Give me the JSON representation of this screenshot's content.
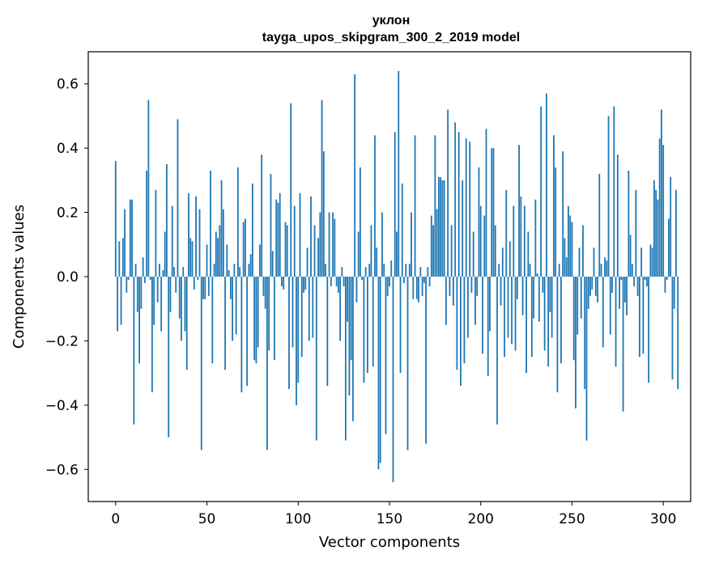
{
  "chart_data": {
    "type": "bar",
    "title": "уклон",
    "subtitle": "tayga_upos_skipgram_300_2_2019 model",
    "xlabel": "Vector components",
    "ylabel": "Components values",
    "xlim": [
      -15,
      315
    ],
    "ylim": [
      -0.7,
      0.7
    ],
    "xticks": [
      0,
      50,
      100,
      150,
      200,
      250,
      300
    ],
    "xtick_labels": [
      "0",
      "50",
      "100",
      "150",
      "200",
      "250",
      "300"
    ],
    "yticks": [
      -0.6,
      -0.4,
      -0.2,
      0.0,
      0.2,
      0.4,
      0.6
    ],
    "ytick_labels": [
      "−0.6",
      "−0.4",
      "−0.2",
      "0.0",
      "0.2",
      "0.4",
      "0.6"
    ],
    "grid": false,
    "bar_color": "#1f77b4",
    "values": [
      0.36,
      -0.17,
      0.11,
      -0.15,
      0.12,
      0.21,
      -0.05,
      -0.01,
      0.24,
      0.24,
      -0.46,
      0.04,
      -0.11,
      -0.27,
      -0.1,
      0.06,
      -0.02,
      0.33,
      0.55,
      -0.01,
      -0.36,
      -0.15,
      0.27,
      -0.08,
      0.04,
      -0.17,
      0.02,
      0.14,
      0.35,
      -0.5,
      -0.11,
      0.22,
      0.03,
      -0.05,
      0.49,
      -0.13,
      -0.2,
      0.03,
      -0.17,
      -0.29,
      0.26,
      0.12,
      0.11,
      -0.04,
      0.25,
      -0.01,
      0.21,
      -0.54,
      -0.07,
      -0.07,
      0.1,
      -0.06,
      0.33,
      -0.27,
      0.04,
      0.14,
      0.12,
      0.16,
      0.3,
      0.21,
      -0.29,
      0.1,
      0.02,
      -0.07,
      -0.2,
      0.04,
      -0.18,
      0.34,
      0.03,
      -0.36,
      0.17,
      0.18,
      -0.34,
      0.04,
      0.07,
      0.29,
      -0.26,
      -0.27,
      -0.22,
      0.1,
      0.38,
      -0.06,
      -0.1,
      -0.54,
      -0.23,
      0.32,
      0.08,
      -0.26,
      0.24,
      0.23,
      0.26,
      -0.03,
      -0.04,
      0.17,
      0.16,
      -0.35,
      0.54,
      -0.22,
      0.22,
      -0.4,
      -0.33,
      0.26,
      -0.25,
      -0.05,
      -0.04,
      0.09,
      -0.2,
      0.25,
      -0.19,
      0.16,
      -0.51,
      0.12,
      0.2,
      0.55,
      0.39,
      0.04,
      -0.34,
      0.2,
      -0.03,
      0.2,
      0.18,
      -0.03,
      -0.05,
      -0.2,
      0.03,
      -0.03,
      -0.51,
      -0.14,
      -0.37,
      -0.26,
      -0.45,
      0.63,
      -0.08,
      0.14,
      0.34,
      -0.01,
      -0.33,
      0.03,
      -0.3,
      0.04,
      0.16,
      -0.28,
      0.44,
      0.09,
      -0.6,
      -0.58,
      0.2,
      0.04,
      -0.49,
      -0.06,
      -0.03,
      0.05,
      -0.64,
      0.45,
      0.14,
      0.64,
      -0.3,
      0.29,
      -0.02,
      0.04,
      -0.54,
      0.04,
      0.2,
      -0.07,
      0.44,
      -0.07,
      -0.08,
      0.03,
      -0.06,
      -0.02,
      -0.52,
      0.03,
      -0.03,
      0.19,
      0.16,
      0.44,
      0.21,
      0.31,
      0.31,
      0.3,
      0.3,
      -0.15,
      0.52,
      -0.06,
      0.16,
      -0.09,
      0.48,
      -0.29,
      0.45,
      -0.34,
      0.3,
      -0.27,
      0.43,
      -0.19,
      0.42,
      -0.05,
      0.14,
      -0.15,
      -0.06,
      0.34,
      0.22,
      -0.24,
      0.19,
      0.46,
      -0.31,
      -0.17,
      0.4,
      0.4,
      0.16,
      -0.46,
      0.04,
      -0.09,
      0.09,
      -0.25,
      0.27,
      -0.19,
      0.11,
      -0.21,
      0.22,
      -0.23,
      -0.07,
      0.41,
      0.25,
      -0.12,
      0.22,
      -0.3,
      0.14,
      0.04,
      -0.25,
      -0.13,
      0.24,
      0.01,
      -0.14,
      0.53,
      -0.05,
      -0.23,
      0.57,
      -0.28,
      -0.11,
      -0.19,
      0.44,
      0.34,
      -0.36,
      0.04,
      -0.27,
      0.39,
      0.12,
      0.06,
      0.22,
      0.19,
      0.17,
      -0.26,
      -0.41,
      -0.18,
      0.09,
      -0.13,
      0.16,
      -0.35,
      -0.51,
      -0.1,
      -0.06,
      -0.04,
      0.09,
      -0.06,
      -0.08,
      0.32,
      0.04,
      -0.22,
      0.06,
      0.05,
      0.5,
      -0.18,
      -0.05,
      0.53,
      -0.28,
      0.38,
      -0.1,
      -0.01,
      -0.42,
      -0.08,
      -0.12,
      0.33,
      0.13,
      0.04,
      -0.03,
      0.27,
      -0.06,
      -0.25,
      0.09,
      -0.24,
      -0.01,
      -0.03,
      -0.33,
      0.1,
      0.09,
      0.3,
      0.27,
      0.24,
      0.43,
      0.52,
      0.41,
      -0.05,
      -0.01,
      0.18,
      0.31,
      -0.32,
      -0.1,
      0.27,
      -0.35
    ]
  }
}
